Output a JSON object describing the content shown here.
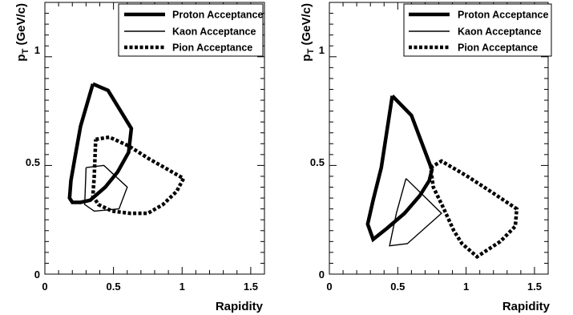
{
  "chart_data": [
    {
      "type": "line",
      "xlabel": "Rapidity",
      "ylabel": "p_T (GeV/c)",
      "xlim": [
        0,
        1.6
      ],
      "ylim": [
        0,
        1.25
      ],
      "x_ticks": [
        "0",
        "0.5",
        "1",
        "1.5"
      ],
      "y_ticks": [
        "0",
        "0.5",
        "1"
      ],
      "legend_position": "top-right",
      "series": [
        {
          "name": "Proton Acceptance",
          "style": "thick-solid",
          "points": [
            [
              0.35,
              0.875
            ],
            [
              0.46,
              0.845
            ],
            [
              0.63,
              0.67
            ],
            [
              0.61,
              0.56
            ],
            [
              0.53,
              0.47
            ],
            [
              0.44,
              0.4
            ],
            [
              0.33,
              0.34
            ],
            [
              0.26,
              0.33
            ],
            [
              0.2,
              0.33
            ],
            [
              0.18,
              0.35
            ],
            [
              0.19,
              0.43
            ],
            [
              0.22,
              0.54
            ],
            [
              0.26,
              0.68
            ],
            [
              0.35,
              0.875
            ]
          ]
        },
        {
          "name": "Kaon Acceptance",
          "style": "thin-solid",
          "points": [
            [
              0.3,
              0.49
            ],
            [
              0.43,
              0.5
            ],
            [
              0.6,
              0.4
            ],
            [
              0.54,
              0.3
            ],
            [
              0.36,
              0.29
            ],
            [
              0.29,
              0.32
            ],
            [
              0.3,
              0.49
            ]
          ]
        },
        {
          "name": "Pion Acceptance",
          "style": "thick-dotted",
          "points": [
            [
              0.37,
              0.62
            ],
            [
              0.47,
              0.63
            ],
            [
              0.61,
              0.59
            ],
            [
              0.76,
              0.53
            ],
            [
              0.9,
              0.48
            ],
            [
              1.01,
              0.44
            ],
            [
              0.96,
              0.38
            ],
            [
              0.86,
              0.32
            ],
            [
              0.75,
              0.28
            ],
            [
              0.62,
              0.28
            ],
            [
              0.49,
              0.29
            ],
            [
              0.39,
              0.32
            ],
            [
              0.35,
              0.36
            ],
            [
              0.36,
              0.45
            ],
            [
              0.37,
              0.62
            ]
          ]
        }
      ]
    },
    {
      "type": "line",
      "xlabel": "Rapidity",
      "ylabel": "p_T (GeV/c)",
      "xlim": [
        0,
        1.6
      ],
      "ylim": [
        0,
        1.25
      ],
      "x_ticks": [
        "0",
        "0.5",
        "1",
        "1.5"
      ],
      "y_ticks": [
        "0",
        "0.5",
        "1"
      ],
      "legend_position": "top-right",
      "series": [
        {
          "name": "Proton Acceptance",
          "style": "thick-solid",
          "points": [
            [
              0.46,
              0.82
            ],
            [
              0.6,
              0.73
            ],
            [
              0.75,
              0.48
            ],
            [
              0.73,
              0.43
            ],
            [
              0.66,
              0.36
            ],
            [
              0.55,
              0.28
            ],
            [
              0.42,
              0.21
            ],
            [
              0.32,
              0.16
            ],
            [
              0.28,
              0.23
            ],
            [
              0.32,
              0.34
            ],
            [
              0.38,
              0.49
            ],
            [
              0.46,
              0.82
            ]
          ]
        },
        {
          "name": "Kaon Acceptance",
          "style": "thin-solid",
          "points": [
            [
              0.56,
              0.44
            ],
            [
              0.82,
              0.28
            ],
            [
              0.57,
              0.14
            ],
            [
              0.44,
              0.13
            ],
            [
              0.49,
              0.28
            ],
            [
              0.56,
              0.44
            ]
          ]
        },
        {
          "name": "Pion Acceptance",
          "style": "thick-dotted",
          "points": [
            [
              0.74,
              0.49
            ],
            [
              0.82,
              0.52
            ],
            [
              1.01,
              0.45
            ],
            [
              1.18,
              0.38
            ],
            [
              1.37,
              0.3
            ],
            [
              1.36,
              0.22
            ],
            [
              1.25,
              0.15
            ],
            [
              1.08,
              0.08
            ],
            [
              0.97,
              0.14
            ],
            [
              0.91,
              0.2
            ],
            [
              0.83,
              0.31
            ],
            [
              0.76,
              0.4
            ],
            [
              0.74,
              0.49
            ]
          ]
        }
      ]
    }
  ]
}
